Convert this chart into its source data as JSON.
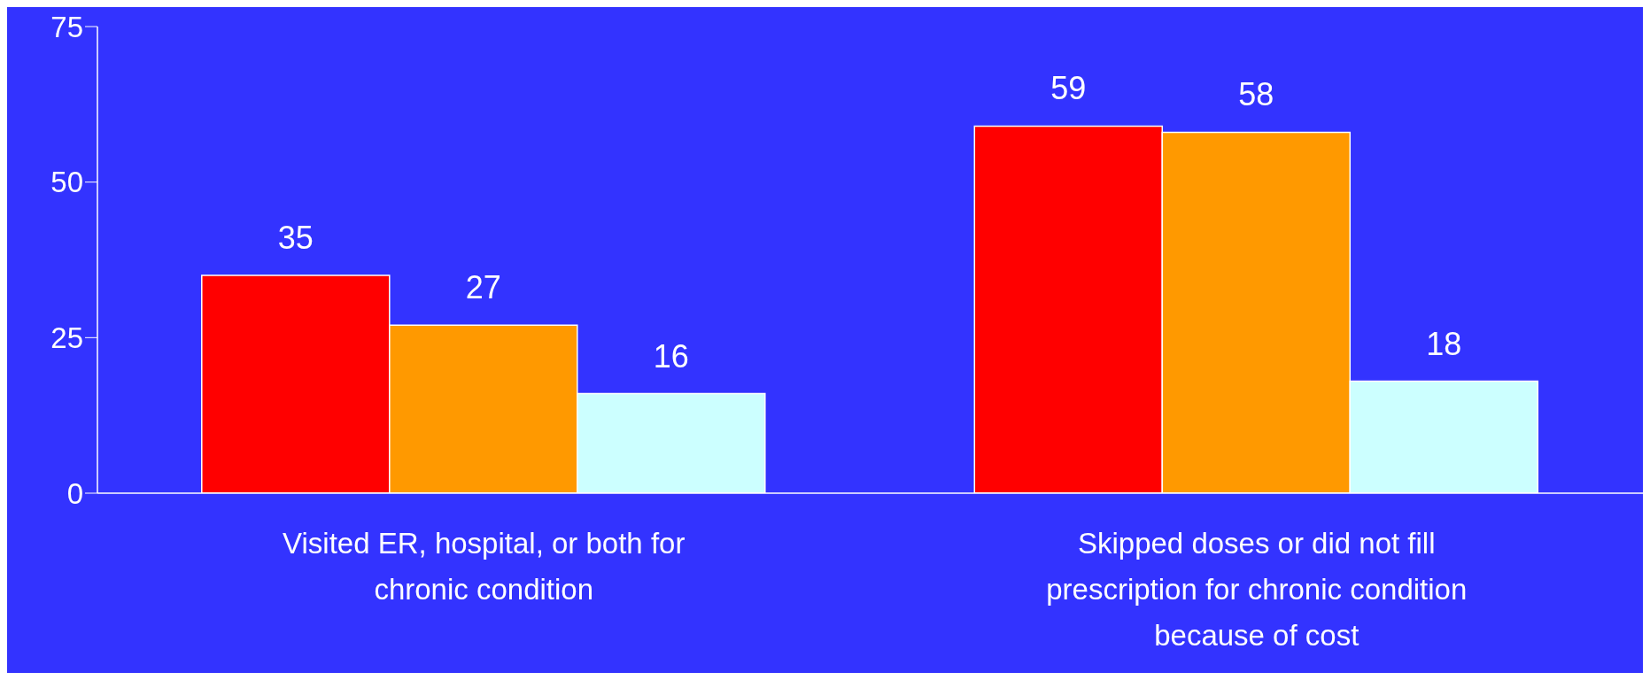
{
  "chart_data": {
    "type": "bar",
    "categories": [
      "Visited ER, hospital, or both for chronic condition",
      "Skipped doses or did not fill prescription for chronic condition because of cost"
    ],
    "series": [
      {
        "color": "#ff0000",
        "values": [
          35,
          59
        ]
      },
      {
        "color": "#ff9900",
        "values": [
          27,
          58
        ]
      },
      {
        "color": "#ccffff",
        "values": [
          16,
          18
        ]
      }
    ],
    "ylim": [
      0,
      75
    ],
    "yticks": [
      0,
      25,
      50,
      75
    ],
    "grid": false,
    "legend": false,
    "data_labels": true
  }
}
